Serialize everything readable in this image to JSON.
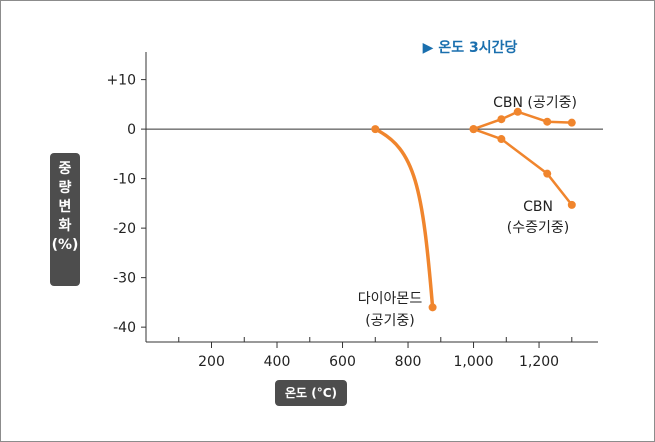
{
  "chart_data": {
    "type": "line",
    "ylabel_chars": [
      "중",
      "량",
      "변",
      "화",
      "(%)"
    ],
    "xlabel": "온도 (°C)",
    "note": "▶ 온도 3시간당",
    "xlim": [
      0,
      1380
    ],
    "ylim": [
      -43,
      18
    ],
    "x_ticks": [
      200,
      400,
      600,
      800,
      1000,
      1200
    ],
    "x_tick_labels": [
      "200",
      "400",
      "600",
      "800",
      "1,000",
      "1,200"
    ],
    "x_minor_ticks": [
      100,
      300,
      500,
      700,
      900,
      1100,
      1300
    ],
    "y_ticks": [
      10,
      0,
      -10,
      -20,
      -30,
      -40
    ],
    "y_tick_labels": [
      "+10",
      "0",
      "-10",
      "-20",
      "-30",
      "-40"
    ],
    "series_color": "#f0852d",
    "series": [
      {
        "annotation": [
          "다이아몬드",
          "(공기중)"
        ],
        "x": [
          700,
          875
        ],
        "y": [
          0,
          -36
        ],
        "curve": true
      },
      {
        "annotation": [
          "CBN (공기중)"
        ],
        "x": [
          1000,
          1085,
          1135,
          1225,
          1300
        ],
        "y": [
          0,
          2,
          3.5,
          1.5,
          1.3
        ]
      },
      {
        "annotation": [
          "CBN",
          "(수증기중)"
        ],
        "x": [
          1000,
          1085,
          1225,
          1300
        ],
        "y": [
          0,
          -2,
          -9,
          -15.3
        ]
      }
    ]
  }
}
